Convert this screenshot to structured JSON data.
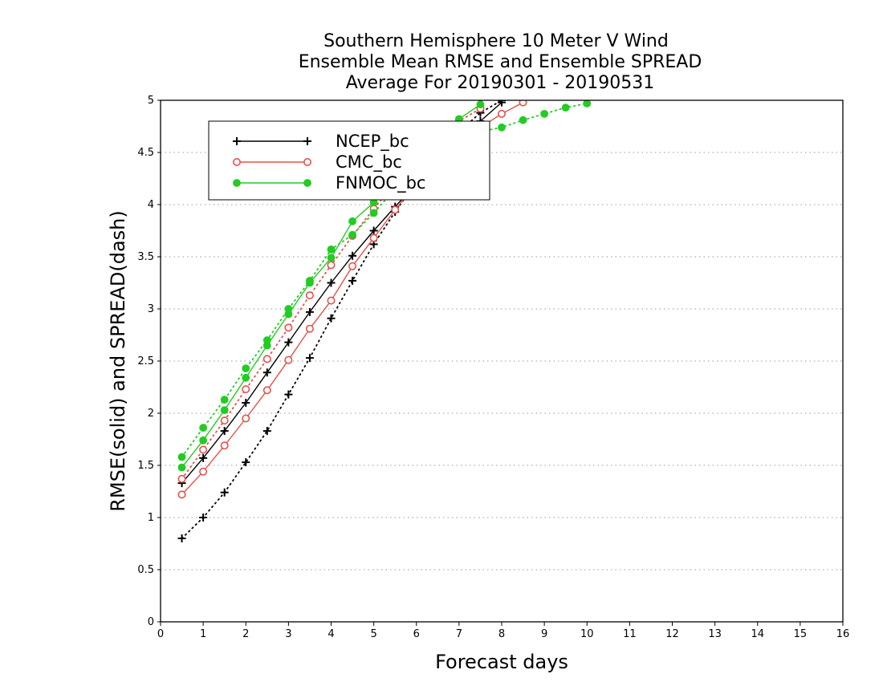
{
  "chart_data": {
    "type": "line",
    "title_lines": [
      "Southern Hemisphere 10 Meter V Wind",
      "Ensemble Mean RMSE and Ensemble SPREAD",
      "Average For 20190301 - 20190531"
    ],
    "xlabel": "Forecast days",
    "ylabel": "RMSE(solid) and SPREAD(dash)",
    "xlim": [
      0,
      16
    ],
    "ylim": [
      0,
      5
    ],
    "x_ticks": [
      "0",
      "1",
      "2",
      "3",
      "4",
      "5",
      "6",
      "7",
      "8",
      "9",
      "10",
      "11",
      "12",
      "13",
      "14",
      "15",
      "16"
    ],
    "y_ticks": [
      "0",
      "0.5",
      "1",
      "1.5",
      "2",
      "2.5",
      "3",
      "3.5",
      "4",
      "4.5",
      "5"
    ],
    "grid": "horizontal dotted",
    "legend_position": "top-left",
    "colors": {
      "NCEP_bc": "#000000",
      "CMC_bc": "#e8504a",
      "FNMOC_bc": "#22cc22"
    },
    "series": [
      {
        "name": "NCEP_bc",
        "kind": "rmse",
        "style": "solid",
        "marker": "plus",
        "x": [
          0.5,
          1,
          1.5,
          2,
          2.5,
          3,
          3.5,
          4,
          4.5,
          5,
          5.5,
          6,
          6.5,
          7,
          7.5,
          8
        ],
        "values": [
          1.33,
          1.57,
          1.83,
          2.1,
          2.39,
          2.68,
          2.97,
          3.25,
          3.51,
          3.75,
          3.98,
          4.2,
          4.42,
          4.62,
          4.8,
          4.98
        ]
      },
      {
        "name": "NCEP_bc",
        "kind": "spread",
        "style": "dotted",
        "marker": "plus",
        "x": [
          0.5,
          1,
          1.5,
          2,
          2.5,
          3,
          3.5,
          4,
          4.5,
          5,
          5.5,
          6,
          6.5,
          7,
          7.5,
          8
        ],
        "values": [
          0.8,
          1.0,
          1.24,
          1.53,
          1.83,
          2.18,
          2.53,
          2.91,
          3.27,
          3.62,
          3.93,
          4.22,
          4.48,
          4.7,
          4.88,
          5.0
        ]
      },
      {
        "name": "CMC_bc",
        "kind": "rmse",
        "style": "solid",
        "marker": "open-circle",
        "x": [
          0.5,
          1,
          1.5,
          2,
          2.5,
          3,
          3.5,
          4,
          4.5,
          5,
          5.5,
          6,
          6.5,
          7,
          7.5,
          8,
          8.5
        ],
        "values": [
          1.22,
          1.44,
          1.69,
          1.95,
          2.22,
          2.51,
          2.81,
          3.08,
          3.41,
          3.68,
          3.95,
          4.2,
          4.42,
          4.6,
          4.74,
          4.87,
          4.98
        ]
      },
      {
        "name": "CMC_bc",
        "kind": "spread",
        "style": "dotted",
        "marker": "open-circle",
        "x": [
          0.5,
          1,
          1.5,
          2,
          2.5,
          3,
          3.5,
          4,
          4.5,
          5,
          5.5,
          6,
          6.5,
          7,
          7.5
        ],
        "values": [
          1.37,
          1.65,
          1.93,
          2.23,
          2.52,
          2.82,
          3.13,
          3.42,
          3.7,
          3.96,
          4.2,
          4.43,
          4.63,
          4.8,
          4.92
        ]
      },
      {
        "name": "FNMOC_bc",
        "kind": "rmse",
        "style": "solid",
        "marker": "filled-circle",
        "x": [
          0.5,
          1,
          1.5,
          2,
          2.5,
          3,
          3.5,
          4,
          4.5,
          5,
          5.5,
          6,
          6.5,
          7,
          7.5
        ],
        "values": [
          1.48,
          1.74,
          2.03,
          2.34,
          2.65,
          2.95,
          3.25,
          3.49,
          3.84,
          4.02,
          4.22,
          4.45,
          4.65,
          4.82,
          4.96
        ]
      },
      {
        "name": "FNMOC_bc",
        "kind": "spread",
        "style": "dotted",
        "marker": "filled-circle",
        "x": [
          0.5,
          1,
          1.5,
          2,
          2.5,
          3,
          3.5,
          4,
          4.5,
          5,
          5.5,
          6,
          6.5,
          7,
          7.5,
          8,
          8.5,
          9,
          9.5,
          10
        ],
        "values": [
          1.58,
          1.86,
          2.13,
          2.43,
          2.7,
          3.0,
          3.27,
          3.57,
          3.71,
          3.92,
          4.15,
          4.37,
          4.56,
          4.7,
          4.7,
          4.74,
          4.81,
          4.87,
          4.93,
          4.97
        ]
      }
    ]
  }
}
